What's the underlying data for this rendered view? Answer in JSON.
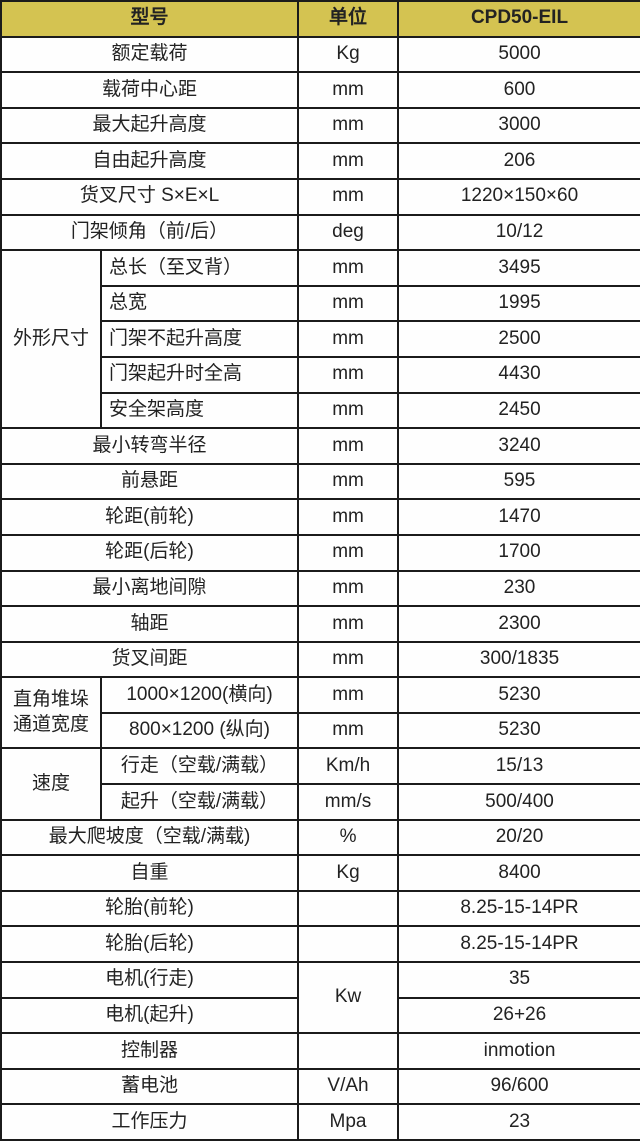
{
  "colors": {
    "header_bg": "#d4c351",
    "border": "#1b1b1b",
    "text": "#222222",
    "cell_bg": "#fefefe"
  },
  "header": {
    "model": "型号",
    "unit": "单位",
    "value": "CPD50-EIL"
  },
  "sections": [
    {
      "type": "row",
      "label": "额定载荷",
      "unit": "Kg",
      "value": "5000"
    },
    {
      "type": "row",
      "label": "载荷中心距",
      "unit": "mm",
      "value": "600"
    },
    {
      "type": "row",
      "label": "最大起升高度",
      "unit": "mm",
      "value": "3000"
    },
    {
      "type": "row",
      "label": "自由起升高度",
      "unit": "mm",
      "value": "206"
    },
    {
      "type": "row",
      "label": "货叉尺寸 S×E×L",
      "unit": "mm",
      "value": "1220×150×60"
    },
    {
      "type": "row",
      "label": "门架倾角（前/后）",
      "unit": "deg",
      "value": "10/12"
    },
    {
      "type": "group",
      "label": "外形尺寸",
      "sub_align": "left",
      "rows": [
        {
          "label": "总长（至叉背）",
          "unit": "mm",
          "value": "3495"
        },
        {
          "label": "总宽",
          "unit": "mm",
          "value": "1995"
        },
        {
          "label": "门架不起升高度",
          "unit": "mm",
          "value": "2500"
        },
        {
          "label": "门架起升时全高",
          "unit": "mm",
          "value": "4430"
        },
        {
          "label": "安全架高度",
          "unit": "mm",
          "value": "2450"
        }
      ]
    },
    {
      "type": "row",
      "label": "最小转弯半径",
      "unit": "mm",
      "value": "3240"
    },
    {
      "type": "row",
      "label": "前悬距",
      "unit": "mm",
      "value": "595"
    },
    {
      "type": "row",
      "label": "轮距(前轮)",
      "unit": "mm",
      "value": "1470"
    },
    {
      "type": "row",
      "label": "轮距(后轮)",
      "unit": "mm",
      "value": "1700"
    },
    {
      "type": "row",
      "label": "最小离地间隙",
      "unit": "mm",
      "value": "230"
    },
    {
      "type": "row",
      "label": "轴距",
      "unit": "mm",
      "value": "2300"
    },
    {
      "type": "row",
      "label": "货叉间距",
      "unit": "mm",
      "value": "300/1835"
    },
    {
      "type": "group",
      "label": "直角堆垛通道宽度",
      "sub_align": "center",
      "rows": [
        {
          "label": "1000×1200(横向)",
          "unit": "mm",
          "value": "5230"
        },
        {
          "label": "800×1200 (纵向)",
          "unit": "mm",
          "value": "5230"
        }
      ]
    },
    {
      "type": "group",
      "label": "速度",
      "sub_align": "center",
      "rows": [
        {
          "label": "行走（空载/满载）",
          "unit": "Km/h",
          "value": "15/13"
        },
        {
          "label": "起升（空载/满载）",
          "unit": "mm/s",
          "value": "500/400"
        }
      ]
    },
    {
      "type": "row",
      "label": "最大爬坡度（空载/满载)",
      "unit": "%",
      "value": "20/20"
    },
    {
      "type": "row",
      "label": "自重",
      "unit": "Kg",
      "value": "8400"
    },
    {
      "type": "row",
      "label": "轮胎(前轮)",
      "unit": "",
      "value": "8.25-15-14PR"
    },
    {
      "type": "row",
      "label": "轮胎(后轮)",
      "unit": "",
      "value": "8.25-15-14PR"
    },
    {
      "type": "unit_group",
      "unit": "Kw",
      "rows": [
        {
          "label": "电机(行走)",
          "value": "35"
        },
        {
          "label": "电机(起升)",
          "value": "26+26"
        }
      ]
    },
    {
      "type": "row",
      "label": "控制器",
      "unit": "",
      "value": "inmotion"
    },
    {
      "type": "row",
      "label": "蓄电池",
      "unit": "V/Ah",
      "value": "96/600"
    },
    {
      "type": "row",
      "label": "工作压力",
      "unit": "Mpa",
      "value": "23"
    }
  ]
}
